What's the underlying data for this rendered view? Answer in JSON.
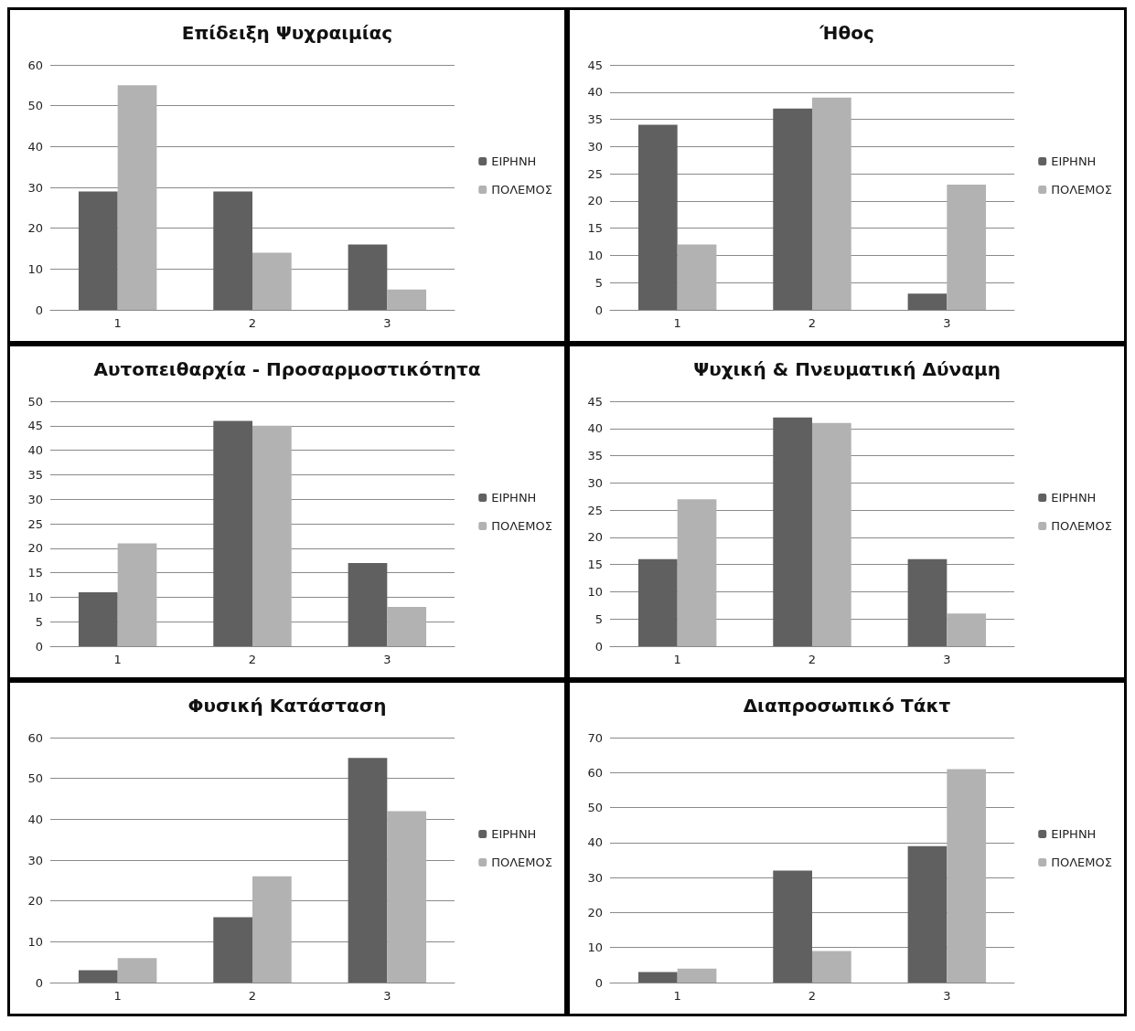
{
  "chart_data": [
    {
      "type": "bar",
      "title": "Επίδειξη Ψυχραιμίας",
      "categories": [
        "1",
        "2",
        "3"
      ],
      "ylim": [
        0,
        60
      ],
      "yticks": [
        0,
        10,
        20,
        30,
        40,
        50,
        60
      ],
      "grid": "y",
      "legend": "right",
      "series": [
        {
          "name": "ΕΙΡΗΝΗ",
          "color": "#606060",
          "values": [
            29,
            29,
            16
          ]
        },
        {
          "name": "ΠΟΛΕΜΟΣ",
          "color": "#b2b2b2",
          "values": [
            55,
            14,
            5
          ]
        }
      ]
    },
    {
      "type": "bar",
      "title": "Ήθος",
      "categories": [
        "1",
        "2",
        "3"
      ],
      "ylim": [
        0,
        45
      ],
      "yticks": [
        0,
        5,
        10,
        15,
        20,
        25,
        30,
        35,
        40,
        45
      ],
      "grid": "y",
      "legend": "right",
      "series": [
        {
          "name": "ΕΙΡΗΝΗ",
          "color": "#606060",
          "values": [
            34,
            37,
            3
          ]
        },
        {
          "name": "ΠΟΛΕΜΟΣ",
          "color": "#b2b2b2",
          "values": [
            12,
            39,
            23
          ]
        }
      ]
    },
    {
      "type": "bar",
      "title": "Αυτοπειθαρχία - Προσαρμοστικότητα",
      "categories": [
        "1",
        "2",
        "3"
      ],
      "ylim": [
        0,
        50
      ],
      "yticks": [
        0,
        5,
        10,
        15,
        20,
        25,
        30,
        35,
        40,
        45,
        50
      ],
      "grid": "y",
      "legend": "right",
      "series": [
        {
          "name": "ΕΙΡΗΝΗ",
          "color": "#606060",
          "values": [
            11,
            46,
            17
          ]
        },
        {
          "name": "ΠΟΛΕΜΟΣ",
          "color": "#b2b2b2",
          "values": [
            21,
            45,
            8
          ]
        }
      ]
    },
    {
      "type": "bar",
      "title": "Ψυχική & Πνευματική Δύναμη",
      "categories": [
        "1",
        "2",
        "3"
      ],
      "ylim": [
        0,
        45
      ],
      "yticks": [
        0,
        5,
        10,
        15,
        20,
        25,
        30,
        35,
        40,
        45
      ],
      "grid": "y",
      "legend": "right",
      "series": [
        {
          "name": "ΕΙΡΗΝΗ",
          "color": "#606060",
          "values": [
            16,
            42,
            16
          ]
        },
        {
          "name": "ΠΟΛΕΜΟΣ",
          "color": "#b2b2b2",
          "values": [
            27,
            41,
            6
          ]
        }
      ]
    },
    {
      "type": "bar",
      "title": "Φυσική Κατάσταση",
      "categories": [
        "1",
        "2",
        "3"
      ],
      "ylim": [
        0,
        60
      ],
      "yticks": [
        0,
        10,
        20,
        30,
        40,
        50,
        60
      ],
      "grid": "y",
      "legend": "right",
      "series": [
        {
          "name": "ΕΙΡΗΝΗ",
          "color": "#606060",
          "values": [
            3,
            16,
            55
          ]
        },
        {
          "name": "ΠΟΛΕΜΟΣ",
          "color": "#b2b2b2",
          "values": [
            6,
            26,
            42
          ]
        }
      ]
    },
    {
      "type": "bar",
      "title": "Διαπροσωπικό Τάκτ",
      "categories": [
        "1",
        "2",
        "3"
      ],
      "ylim": [
        0,
        70
      ],
      "yticks": [
        0,
        10,
        20,
        30,
        40,
        50,
        60,
        70
      ],
      "grid": "y",
      "legend": "right",
      "series": [
        {
          "name": "ΕΙΡΗΝΗ",
          "color": "#606060",
          "values": [
            3,
            32,
            39
          ]
        },
        {
          "name": "ΠΟΛΕΜΟΣ",
          "color": "#b2b2b2",
          "values": [
            4,
            9,
            61
          ]
        }
      ]
    }
  ]
}
